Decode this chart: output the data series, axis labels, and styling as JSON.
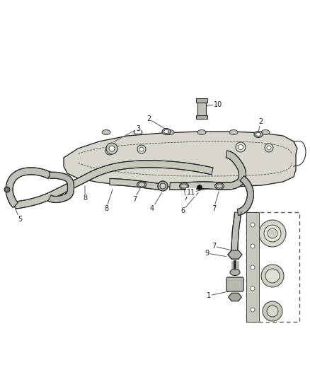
{
  "bg_color": "#ffffff",
  "line_color": "#2a2a2a",
  "fig_width": 4.38,
  "fig_height": 5.33,
  "dpi": 100,
  "label_fs": 7.0,
  "leader_color": "#555555",
  "part_color_light": "#d0cfc8",
  "part_color_mid": "#b0afa8",
  "part_color_dark": "#888880"
}
